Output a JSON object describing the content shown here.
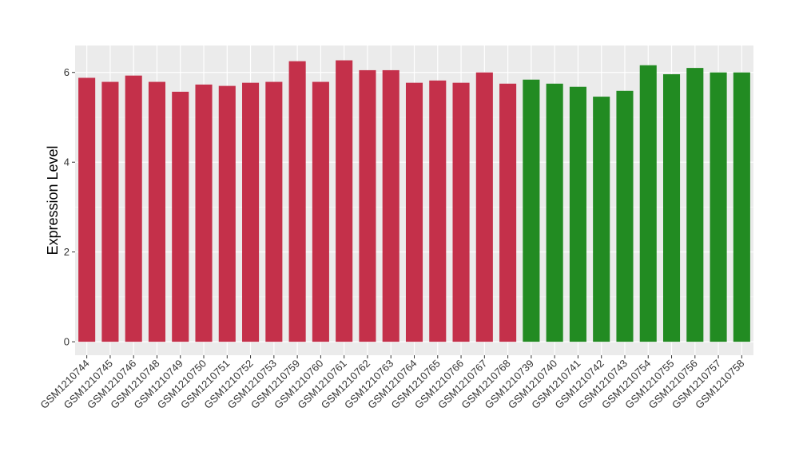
{
  "chart_data": {
    "type": "bar",
    "title": "",
    "xlabel": "",
    "ylabel": "Expression Level",
    "ylim": [
      -0.3,
      6.6
    ],
    "yticks": [
      0,
      2,
      4,
      6
    ],
    "grid": true,
    "background": "#ebebeb",
    "categories": [
      "GSM1210744",
      "GSM1210745",
      "GSM1210746",
      "GSM1210748",
      "GSM1210749",
      "GSM1210750",
      "GSM1210751",
      "GSM1210752",
      "GSM1210753",
      "GSM1210759",
      "GSM1210760",
      "GSM1210761",
      "GSM1210762",
      "GSM1210763",
      "GSM1210764",
      "GSM1210765",
      "GSM1210766",
      "GSM1210767",
      "GSM1210768",
      "GSM1210739",
      "GSM1210740",
      "GSM1210741",
      "GSM1210742",
      "GSM1210743",
      "GSM1210754",
      "GSM1210755",
      "GSM1210756",
      "GSM1210757",
      "GSM1210758"
    ],
    "values": [
      5.88,
      5.79,
      5.93,
      5.79,
      5.57,
      5.73,
      5.7,
      5.77,
      5.79,
      6.25,
      5.79,
      6.27,
      6.05,
      6.05,
      5.77,
      5.82,
      5.77,
      6.0,
      5.75,
      5.84,
      5.75,
      5.68,
      5.46,
      5.59,
      6.16,
      5.96,
      6.1,
      6.0,
      6.0
    ],
    "groups": [
      "a",
      "a",
      "a",
      "a",
      "a",
      "a",
      "a",
      "a",
      "a",
      "a",
      "a",
      "a",
      "a",
      "a",
      "a",
      "a",
      "a",
      "a",
      "a",
      "b",
      "b",
      "b",
      "b",
      "b",
      "b",
      "b",
      "b",
      "b",
      "b"
    ],
    "colors": {
      "a": "#c4304a",
      "b": "#228b22"
    }
  }
}
